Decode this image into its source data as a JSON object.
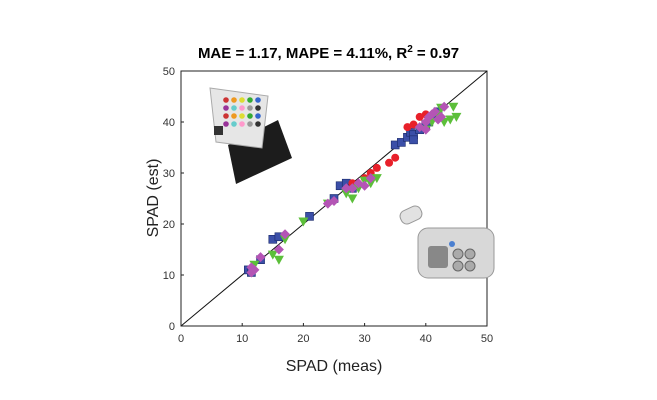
{
  "chart_data": {
    "type": "scatter",
    "title_parts": {
      "prefix": "MAE = 1.17, MAPE = 4.11%, R",
      "sup": "2",
      "suffix": " = 0.97"
    },
    "xlabel": "SPAD (meas)",
    "ylabel": "SPAD (est)",
    "xlim": [
      0,
      50
    ],
    "ylim": [
      0,
      50
    ],
    "xticks": [
      0,
      10,
      20,
      30,
      40,
      50
    ],
    "yticks": [
      0,
      10,
      20,
      30,
      40,
      50
    ],
    "grid": false,
    "reference_line": "y = x",
    "series": [
      {
        "marker": "square",
        "color": "#3b4fa8",
        "points": [
          [
            11,
            11
          ],
          [
            11.5,
            10.5
          ],
          [
            13,
            13
          ],
          [
            15,
            17
          ],
          [
            16,
            17.5
          ],
          [
            21,
            21.5
          ],
          [
            25,
            25
          ],
          [
            26,
            27.5
          ],
          [
            27,
            28
          ],
          [
            28,
            27
          ],
          [
            35,
            35.5
          ],
          [
            36,
            36
          ],
          [
            37,
            37
          ],
          [
            37.5,
            38
          ],
          [
            38,
            37.5
          ],
          [
            39,
            38.5
          ],
          [
            40,
            39.5
          ],
          [
            40.5,
            40
          ],
          [
            41,
            41
          ],
          [
            42,
            42
          ],
          [
            38,
            36.5
          ]
        ]
      },
      {
        "marker": "circle",
        "color": "#e8202a",
        "points": [
          [
            30,
            29
          ],
          [
            31,
            30
          ],
          [
            32,
            31
          ],
          [
            34,
            32
          ],
          [
            35,
            33
          ],
          [
            37,
            39
          ],
          [
            38,
            39.5
          ],
          [
            39,
            41
          ],
          [
            40,
            41.5
          ],
          [
            28,
            28
          ]
        ]
      },
      {
        "marker": "triangle-down",
        "color": "#5cbf3a",
        "points": [
          [
            12,
            12
          ],
          [
            15,
            14
          ],
          [
            16,
            13
          ],
          [
            17,
            17
          ],
          [
            20,
            20.5
          ],
          [
            24,
            24
          ],
          [
            27,
            26
          ],
          [
            28,
            25
          ],
          [
            29,
            27
          ],
          [
            30,
            28.5
          ],
          [
            31,
            28
          ],
          [
            32,
            29
          ],
          [
            40,
            38.5
          ],
          [
            41,
            40
          ],
          [
            42,
            41.5
          ],
          [
            43,
            40
          ],
          [
            44,
            40.5
          ],
          [
            44.5,
            43
          ],
          [
            45,
            41
          ],
          [
            42.5,
            42.8
          ]
        ]
      },
      {
        "marker": "diamond",
        "color": "#b455b5",
        "points": [
          [
            11.5,
            10.5
          ],
          [
            12,
            11
          ],
          [
            13,
            13.5
          ],
          [
            16,
            15
          ],
          [
            17,
            18
          ],
          [
            24,
            24
          ],
          [
            25,
            24.5
          ],
          [
            27,
            27
          ],
          [
            28,
            27
          ],
          [
            29,
            28
          ],
          [
            30,
            27.5
          ],
          [
            31,
            29
          ],
          [
            39,
            39
          ],
          [
            40,
            40
          ],
          [
            40.5,
            41
          ],
          [
            41,
            41.5
          ],
          [
            41.5,
            42
          ],
          [
            42,
            40.5
          ],
          [
            42.5,
            41
          ],
          [
            43,
            43
          ],
          [
            40,
            38.5
          ],
          [
            11.5,
            11.5
          ]
        ]
      }
    ]
  },
  "images": {
    "top_left": "color-calibration-card",
    "bottom_right": "spad-meter-device"
  }
}
